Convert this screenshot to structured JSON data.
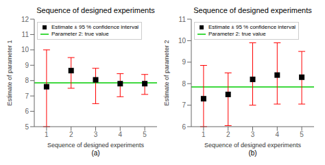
{
  "chart_data": [
    {
      "type": "scatter",
      "title": "Sequence of designed experiments",
      "xlabel": "Sequence of designed experiments",
      "ylabel": "Estimate of parameter 1",
      "sublabel": "(a)",
      "x": [
        1,
        2,
        3,
        4,
        5
      ],
      "xlim": [
        0.5,
        5.5
      ],
      "xticks": [
        1,
        2,
        3,
        4,
        5
      ],
      "ylim": [
        5,
        12
      ],
      "yticks": [
        5,
        6,
        7,
        8,
        9,
        10,
        11,
        12
      ],
      "legend": "upper left",
      "series": [
        {
          "name": "Estimate ± 95 % confidence interval",
          "color": "black",
          "marker": "square",
          "values": [
            7.6,
            8.65,
            8.05,
            7.8,
            7.8
          ],
          "errors": {
            "low": [
              2.6,
              1.15,
              1.55,
              0.85,
              0.7
            ],
            "high": [
              2.4,
              0.85,
              0.75,
              0.65,
              0.6
            ],
            "color": "#ff0000"
          }
        },
        {
          "name": "Parameter 2: true value",
          "type": "hline",
          "color": "#00cc00",
          "line_style": "solid",
          "value": 7.85
        }
      ]
    },
    {
      "type": "scatter",
      "title": "Sequence of designed experiments",
      "xlabel": "Sequence of designed experiments",
      "ylabel": "Estimate of parameter 2",
      "sublabel": "(b)",
      "x": [
        1,
        2,
        3,
        4,
        5
      ],
      "xlim": [
        0.5,
        5.5
      ],
      "xticks": [
        1,
        2,
        3,
        4,
        5
      ],
      "ylim": [
        6,
        11
      ],
      "yticks": [
        6,
        7,
        8,
        9,
        10,
        11
      ],
      "legend": "upper left",
      "series": [
        {
          "name": "Estimate ± 95 % confidence interval",
          "color": "black",
          "marker": "square",
          "values": [
            7.3,
            7.5,
            8.2,
            8.4,
            8.3
          ],
          "errors": {
            "low": [
              1.3,
              1.45,
              1.2,
              1.35,
              1.25
            ],
            "high": [
              1.55,
              1.0,
              1.7,
              1.5,
              1.2
            ],
            "color": "#ff0000"
          }
        },
        {
          "name": "Parameter 2: true value",
          "type": "hline",
          "color": "#00cc00",
          "line_style": "solid",
          "value": 7.85
        }
      ]
    }
  ]
}
